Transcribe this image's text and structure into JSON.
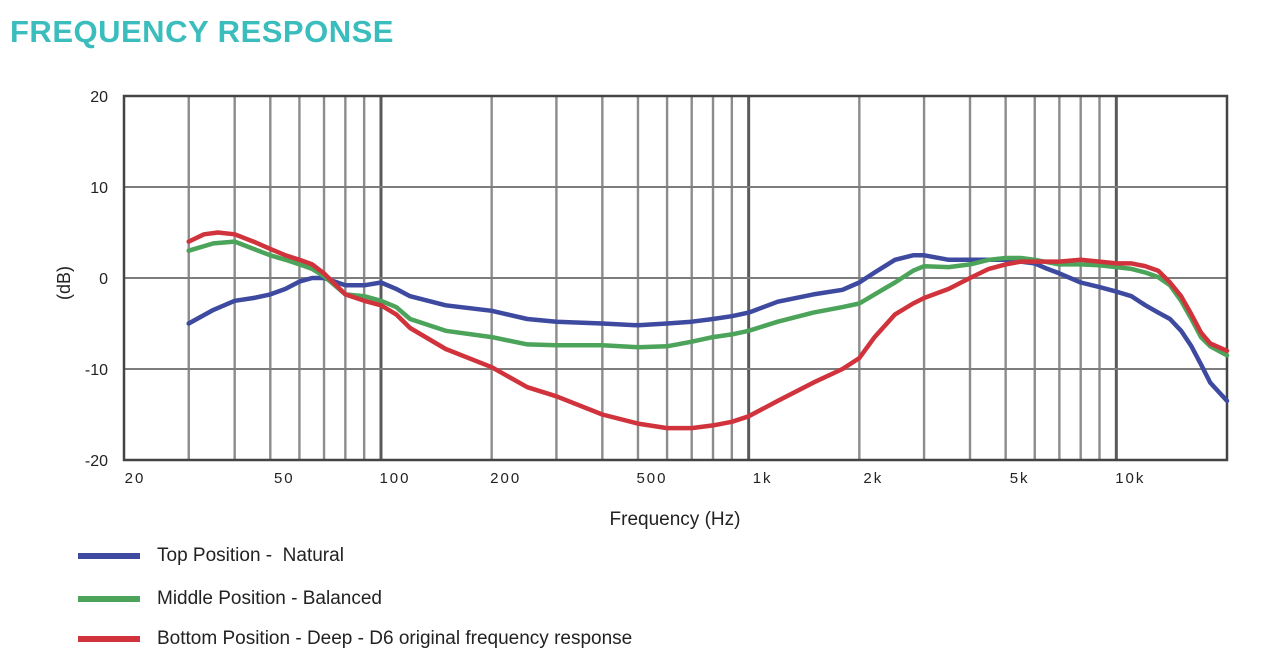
{
  "title": "FREQUENCY RESPONSE",
  "colors": {
    "title": "#3bbdbd",
    "grid": "#8c8c8c",
    "axis": "#444444",
    "text": "#222222"
  },
  "chart_data": {
    "type": "line",
    "title": "FREQUENCY RESPONSE",
    "xlabel": "Frequency (Hz)",
    "ylabel": "(dB)",
    "x_scale": "log",
    "xlim": [
      20,
      20000
    ],
    "ylim": [
      -20,
      20
    ],
    "yticks": [
      20,
      10,
      0,
      -10,
      -20
    ],
    "ytick_labels": [
      "20",
      "10",
      "0",
      "-10",
      "-20"
    ],
    "xticks": [
      20,
      50,
      100,
      200,
      500,
      1000,
      2000,
      5000,
      10000
    ],
    "xtick_labels": [
      "20",
      "50",
      "100",
      "200",
      "500",
      "1k",
      "2k",
      "5k",
      "10k"
    ],
    "grid": true,
    "legend_position": "bottom-left",
    "series": [
      {
        "name": "Top Position -  Natural",
        "color": "#3e4aa0",
        "x": [
          30,
          35,
          40,
          45,
          50,
          55,
          60,
          65,
          70,
          80,
          90,
          100,
          110,
          120,
          150,
          200,
          250,
          300,
          400,
          500,
          600,
          700,
          800,
          900,
          1000,
          1200,
          1500,
          1800,
          2000,
          2200,
          2500,
          2800,
          3000,
          3500,
          4000,
          4500,
          5000,
          5500,
          6000,
          6500,
          7000,
          8000,
          9000,
          10000,
          11000,
          12000,
          13000,
          14000,
          15000,
          16000,
          17000,
          18000,
          20000
        ],
        "y": [
          -5,
          -3.5,
          -2.5,
          -2.2,
          -1.8,
          -1.2,
          -0.4,
          0,
          0,
          -0.8,
          -0.8,
          -0.5,
          -1.2,
          -2,
          -3,
          -3.6,
          -4.5,
          -4.8,
          -5,
          -5.2,
          -5,
          -4.8,
          -4.5,
          -4.2,
          -3.8,
          -2.6,
          -1.8,
          -1.3,
          -0.5,
          0.6,
          2,
          2.5,
          2.5,
          2,
          2,
          2,
          2,
          1.8,
          1.6,
          1,
          0.5,
          -0.5,
          -1,
          -1.5,
          -2,
          -3,
          -3.8,
          -4.5,
          -5.8,
          -7.5,
          -9.5,
          -11.5,
          -13.5
        ]
      },
      {
        "name": "Middle Position - Balanced",
        "color": "#4ca35a",
        "x": [
          30,
          35,
          40,
          45,
          50,
          55,
          60,
          65,
          70,
          80,
          90,
          100,
          110,
          120,
          150,
          200,
          250,
          300,
          400,
          500,
          600,
          700,
          800,
          900,
          1000,
          1200,
          1500,
          1800,
          2000,
          2200,
          2500,
          2800,
          3000,
          3500,
          4000,
          4500,
          5000,
          5500,
          6000,
          7000,
          8000,
          9000,
          10000,
          11000,
          12000,
          13000,
          14000,
          15000,
          16000,
          17000,
          18000,
          20000
        ],
        "y": [
          3,
          3.8,
          4,
          3.2,
          2.5,
          2,
          1.5,
          1,
          0.2,
          -1.8,
          -2,
          -2.5,
          -3.2,
          -4.5,
          -5.8,
          -6.5,
          -7.3,
          -7.4,
          -7.4,
          -7.6,
          -7.5,
          -7,
          -6.5,
          -6.2,
          -5.8,
          -4.8,
          -3.8,
          -3.2,
          -2.8,
          -1.8,
          -0.5,
          0.8,
          1.3,
          1.2,
          1.5,
          2,
          2.2,
          2.2,
          2,
          1.5,
          1.5,
          1.4,
          1.2,
          1,
          0.6,
          0.1,
          -0.8,
          -2.5,
          -4.5,
          -6.5,
          -7.5,
          -8.5
        ]
      },
      {
        "name": "Bottom Position - Deep - D6 original frequency response",
        "color": "#d1333c",
        "x": [
          30,
          33,
          36,
          40,
          45,
          50,
          55,
          60,
          65,
          70,
          80,
          90,
          100,
          110,
          120,
          150,
          200,
          250,
          300,
          400,
          500,
          600,
          700,
          800,
          900,
          1000,
          1200,
          1500,
          1800,
          2000,
          2200,
          2500,
          2800,
          3000,
          3500,
          4000,
          4500,
          5000,
          5500,
          6000,
          7000,
          8000,
          9000,
          10000,
          11000,
          12000,
          13000,
          14000,
          15000,
          16000,
          17000,
          18000,
          20000
        ],
        "y": [
          4,
          4.8,
          5,
          4.8,
          4,
          3.2,
          2.5,
          2,
          1.5,
          0.5,
          -1.8,
          -2.5,
          -3,
          -4,
          -5.5,
          -7.8,
          -9.8,
          -12,
          -13,
          -15,
          -16,
          -16.5,
          -16.5,
          -16.2,
          -15.8,
          -15.2,
          -13.5,
          -11.5,
          -10,
          -8.8,
          -6.5,
          -4,
          -2.8,
          -2.2,
          -1.2,
          0,
          1,
          1.5,
          1.8,
          1.8,
          1.8,
          2,
          1.8,
          1.6,
          1.6,
          1.3,
          0.8,
          -0.5,
          -2,
          -4,
          -6,
          -7.2,
          -8
        ]
      }
    ]
  }
}
